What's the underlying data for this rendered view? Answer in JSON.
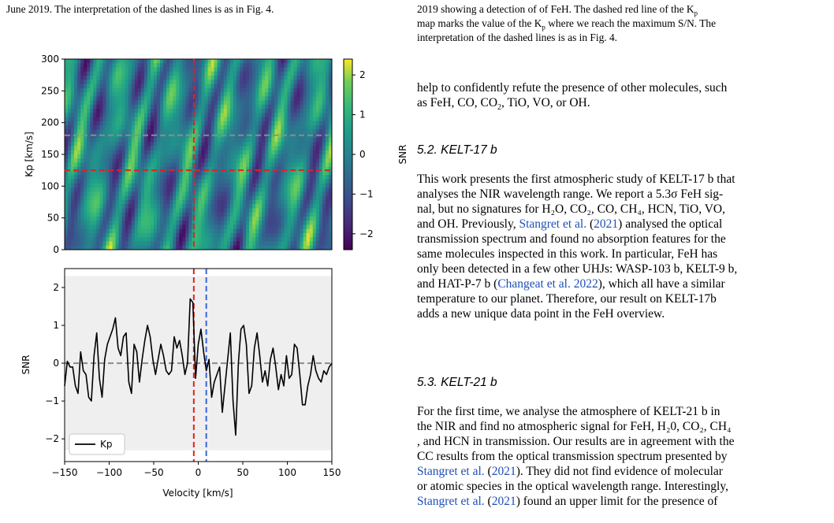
{
  "left_caption_tail": "June 2019. The interpretation of the dashed lines is as in Fig. 4.",
  "right_caption": {
    "line1": "2019 showing a detection of of FeH. The dashed red line of the K",
    "line1_sub": "p",
    "line2a": "map marks the value of the K",
    "line2_sub": "p",
    "line2b": " where we reach the maximum S/N. The",
    "line3": "interpretation of the dashed lines is as in Fig. 4."
  },
  "intro_para": {
    "line1": "help to confidently refute the presence of other molecules, such",
    "line2": "as FeH, CO, CO",
    "line2_sub": "2",
    "line2_end": ", TiO, VO, or OH."
  },
  "section_52": {
    "heading": "5.2. KELT-17 b",
    "lines": [
      "This work presents the first atmospheric study of KELT-17 b that",
      "analyses the NIR wavelength range. We report a 5.3σ FeH sig-",
      "nal, but no signatures for H₂O, CO₂, CO, CH₄, HCN, TiO, VO,",
      "and OH. Previously, ",
      "transmission spectrum and found no absorption features for the",
      "same molecules inspected in this work. In particular, FeH has",
      "only been detected in a few other UHJs: WASP-103 b, KELT-9 b,",
      "and HAT-P-7 b (",
      "temperature to our planet. Therefore, our result on KELT-17b",
      "adds a new unique data point in the FeH overview."
    ],
    "line4_link": "Stangret et al.",
    "line4_year": "2021",
    "line4_tail": " analysed the optical",
    "line8_link": "Changeat et al. 2022",
    "line8_tail": "), which all have a similar"
  },
  "section_53": {
    "heading": "5.3. KELT-21 b",
    "lines": [
      "For the first time, we analyse the atmosphere of KELT-21 b in",
      "the NIR and find no atmospheric signal for FeH, H₂0, CO₂, CH₄",
      ", and HCN in transmission. Our results are in agreement with the",
      "CC results from the optical transmission spectrum presented by",
      "). They did not find evidence of molecular",
      "or atomic species in the optical wavelength range. Interestingly,",
      ") found an upper limit for the presence of"
    ],
    "link_a": "Stangret et al.",
    "year_a": "2021",
    "link_b": "Stangret et al.",
    "year_b": "2021"
  },
  "figure": {
    "top_panel": {
      "ylabel": "Kp [km/s]",
      "yticks": [
        "0",
        "50",
        "100",
        "150",
        "200",
        "250",
        "300"
      ],
      "colorbar_label": "SNR",
      "colorbar_ticks": [
        "2",
        "1",
        "0",
        "−1",
        "−2"
      ]
    },
    "bottom_panel": {
      "ylabel": "SNR",
      "xlabel": "Velocity [km/s]",
      "yticks": [
        "2",
        "1",
        "0",
        "−1",
        "−2"
      ],
      "xticks": [
        "−150",
        "−100",
        "−50",
        "0",
        "50",
        "100",
        "150"
      ],
      "legend": "Kp"
    },
    "colors": {
      "red": "#e5201e",
      "blue": "#3b64e0",
      "gray": "#8c8c8c",
      "band": "#efefef"
    }
  },
  "chart_data": [
    {
      "type": "heatmap",
      "ylabel": "Kp [km/s]",
      "colorbar_label": "SNR",
      "x_range": [
        -150,
        150
      ],
      "y_range": [
        0,
        300
      ],
      "color_range": [
        -2.4,
        2.4
      ],
      "markers": {
        "velocity": -5,
        "kp": 125,
        "kp_gray": 180
      }
    },
    {
      "type": "line",
      "xlabel": "Velocity [km/s]",
      "ylabel": "SNR",
      "xlim": [
        -150,
        150
      ],
      "ylim": [
        -2.6,
        2.5
      ],
      "grid": false,
      "legend_position": "lower-left",
      "series": [
        {
          "name": "Kp",
          "x": [
            -150,
            -147,
            -144,
            -141,
            -138,
            -135,
            -132,
            -129,
            -126,
            -123,
            -120,
            -117,
            -114,
            -111,
            -108,
            -105,
            -102,
            -99,
            -96,
            -93,
            -90,
            -87,
            -84,
            -81,
            -78,
            -75,
            -72,
            -69,
            -66,
            -63,
            -60,
            -57,
            -54,
            -51,
            -48,
            -45,
            -42,
            -39,
            -36,
            -33,
            -30,
            -27,
            -24,
            -21,
            -18,
            -15,
            -12,
            -9,
            -6,
            -3,
            0,
            3,
            6,
            9,
            12,
            15,
            18,
            21,
            24,
            27,
            30,
            33,
            36,
            39,
            42,
            45,
            48,
            51,
            54,
            57,
            60,
            63,
            66,
            69,
            72,
            75,
            78,
            81,
            84,
            87,
            90,
            93,
            96,
            99,
            102,
            105,
            108,
            111,
            114,
            117,
            120,
            123,
            126,
            129,
            132,
            135,
            138,
            141,
            144,
            147,
            150
          ],
          "values": [
            -0.6,
            0.05,
            -0.1,
            -0.1,
            -0.6,
            -0.8,
            0.3,
            -0.2,
            -0.3,
            -0.9,
            -1.0,
            0.2,
            0.8,
            -0.4,
            -0.9,
            0.1,
            0.5,
            0.7,
            0.9,
            1.2,
            0.4,
            0.2,
            0.7,
            0.8,
            -0.5,
            -0.8,
            0.5,
            0.3,
            -0.5,
            0.1,
            0.6,
            1.0,
            0.7,
            0.1,
            -0.3,
            0.1,
            0.5,
            0.2,
            -0.2,
            -0.3,
            -0.2,
            0.7,
            0.4,
            0.6,
            0.2,
            -0.3,
            0.0,
            1.7,
            1.6,
            -0.4,
            0.5,
            0.9,
            0.3,
            -0.2,
            0.1,
            -0.9,
            -0.5,
            -0.3,
            -0.1,
            -1.3,
            -0.6,
            0.1,
            0.8,
            -1.0,
            -1.9,
            0.0,
            0.9,
            1.0,
            0.5,
            -0.8,
            -0.6,
            0.4,
            0.8,
            0.2,
            -0.5,
            -0.2,
            -0.6,
            0.1,
            0.4,
            -0.1,
            -0.7,
            -0.3,
            -0.6,
            0.2,
            -0.4,
            -0.3,
            0.5,
            0.4,
            -0.3,
            -1.1,
            -1.1,
            -0.6,
            -0.3,
            0.2,
            -0.2,
            -0.4,
            -0.5,
            -0.2,
            -0.3,
            -0.1,
            0.0
          ]
        }
      ],
      "markers": {
        "red_velocity": -5,
        "blue_velocity": 9,
        "gray_level": 0
      }
    }
  ]
}
